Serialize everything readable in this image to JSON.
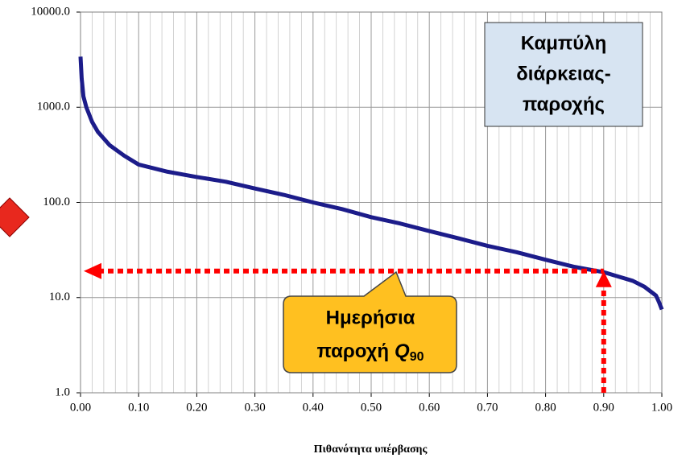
{
  "chart_data": {
    "type": "line",
    "xlabel": "Πιθανότητα υπέρβασης",
    "x": [
      0,
      0.002,
      0.005,
      0.01,
      0.02,
      0.03,
      0.05,
      0.075,
      0.1,
      0.15,
      0.2,
      0.25,
      0.3,
      0.35,
      0.4,
      0.45,
      0.5,
      0.55,
      0.6,
      0.65,
      0.7,
      0.75,
      0.8,
      0.85,
      0.9,
      0.95,
      0.97,
      0.99,
      0.995,
      1.0
    ],
    "series": [
      {
        "color": "#1c1c8a",
        "values": [
          3400,
          2000,
          1300,
          1000,
          700,
          550,
          400,
          310,
          250,
          210,
          185,
          165,
          140,
          120,
          100,
          85,
          70,
          60,
          50,
          42,
          35,
          30,
          25,
          21,
          18.5,
          15,
          13,
          10.5,
          9,
          7.5
        ]
      }
    ],
    "xlim": [
      0,
      1
    ],
    "xticks": [
      {
        "value": 0,
        "label": "0.00"
      },
      {
        "value": 0.1,
        "label": "0.10"
      },
      {
        "value": 0.2,
        "label": "0.20"
      },
      {
        "value": 0.3,
        "label": "0.30"
      },
      {
        "value": 0.4,
        "label": "0.40"
      },
      {
        "value": 0.5,
        "label": "0.50"
      },
      {
        "value": 0.6,
        "label": "0.60"
      },
      {
        "value": 0.7,
        "label": "0.70"
      },
      {
        "value": 0.8,
        "label": "0.80"
      },
      {
        "value": 0.9,
        "label": "0.90"
      },
      {
        "value": 1,
        "label": "1.00"
      }
    ],
    "ylim": [
      1,
      10000
    ],
    "yticks": [
      {
        "value": 1,
        "label": "1.0"
      },
      {
        "value": 10,
        "label": "10.0"
      },
      {
        "value": 100,
        "label": "100.0"
      },
      {
        "value": 1000,
        "label": "1000.0"
      },
      {
        "value": 10000,
        "label": "10000.0"
      }
    ],
    "log_y": true,
    "grid": true,
    "x_minor_divisions": 5,
    "reference": {
      "x": 0.9,
      "y": 19,
      "color": "#ff0000"
    },
    "annotations": [
      {
        "lines": [
          "Καμπύλη",
          "διάρκειας-",
          "παροχής"
        ]
      },
      {
        "lines": [
          "Ημερήσια",
          "παροχή"
        ],
        "symbol": "Q",
        "subscript": "90"
      }
    ]
  }
}
